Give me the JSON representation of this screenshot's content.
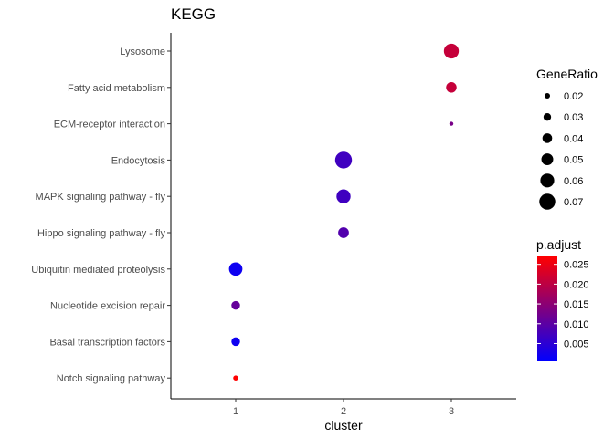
{
  "chart_data": {
    "type": "scatter",
    "title": "KEGG",
    "xlabel": "cluster",
    "ylabel": "",
    "x_ticks": [
      "1",
      "2",
      "3"
    ],
    "y_categories": [
      "Lysosome",
      "Fatty acid metabolism",
      "ECM-receptor interaction",
      "Endocytosis",
      "MAPK signaling pathway - fly",
      "Hippo signaling pathway - fly",
      "Ubiquitin mediated proteolysis",
      "Nucleotide excision repair",
      "Basal transcription factors",
      "Notch signaling pathway"
    ],
    "points": [
      {
        "term": "Lysosome",
        "cluster": "3",
        "gene_ratio": 0.065,
        "p_adjust": 0.021
      },
      {
        "term": "Fatty acid metabolism",
        "cluster": "3",
        "gene_ratio": 0.044,
        "p_adjust": 0.021
      },
      {
        "term": "ECM-receptor interaction",
        "cluster": "3",
        "gene_ratio": 0.013,
        "p_adjust": 0.013
      },
      {
        "term": "Endocytosis",
        "cluster": "2",
        "gene_ratio": 0.074,
        "p_adjust": 0.007
      },
      {
        "term": "MAPK signaling pathway - fly",
        "cluster": "2",
        "gene_ratio": 0.061,
        "p_adjust": 0.007
      },
      {
        "term": "Hippo signaling pathway - fly",
        "cluster": "2",
        "gene_ratio": 0.045,
        "p_adjust": 0.009
      },
      {
        "term": "Ubiquitin mediated proteolysis",
        "cluster": "1",
        "gene_ratio": 0.058,
        "p_adjust": 0.002
      },
      {
        "term": "Nucleotide excision repair",
        "cluster": "1",
        "gene_ratio": 0.035,
        "p_adjust": 0.011
      },
      {
        "term": "Basal transcription factors",
        "cluster": "1",
        "gene_ratio": 0.035,
        "p_adjust": 0.002
      },
      {
        "term": "Notch signaling pathway",
        "cluster": "1",
        "gene_ratio": 0.018,
        "p_adjust": 0.027
      }
    ],
    "size_legend": {
      "title": "GeneRatio",
      "values": [
        0.02,
        0.03,
        0.04,
        0.05,
        0.06,
        0.07
      ],
      "labels": [
        "0.02",
        "0.03",
        "0.04",
        "0.05",
        "0.06",
        "0.07"
      ]
    },
    "color_legend": {
      "title": "p.adjust",
      "range": [
        0.0005,
        0.027
      ],
      "ticks": [
        0.005,
        0.01,
        0.015,
        0.02,
        0.025
      ],
      "labels": [
        "0.005",
        "0.010",
        "0.015",
        "0.020",
        "0.025"
      ],
      "low_color": "#0000FF",
      "high_color": "#FF0000"
    },
    "grid": false,
    "legend_position": "right"
  }
}
